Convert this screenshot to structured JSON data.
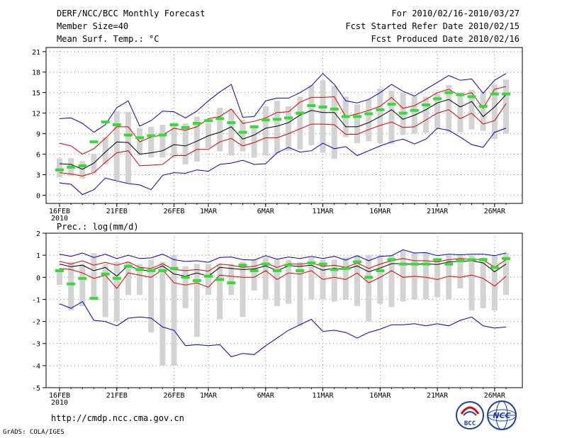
{
  "header": {
    "title": "DERF/NCC/BCC Monthly Forecast",
    "member": "Member Size=40",
    "variable1": "Mean Surf. Temp.: °C",
    "period": "For 2010/02/16-2010/03/27",
    "started": "Fcst Started Refer Date 2010/02/15",
    "produced": "Fcst Produced Date 2010/02/16"
  },
  "footer": {
    "url": "http://cmdp.ncc.cma.gov.cn",
    "credit": "GrADS: COLA/IGES",
    "logo_bcc": "BCC",
    "logo_ncc": "NCC"
  },
  "colors": {
    "envelope": "#0000cc",
    "spread": "#dd0000",
    "mean": "#000000",
    "box": "#d3d3d3",
    "marker": "#33dd33"
  },
  "chart_data": [
    {
      "type": "line",
      "title": "Mean Surf. Temp.: °C",
      "ylabel": "°C",
      "ylim": [
        -1.2,
        21.6
      ],
      "yticks": [
        0,
        3,
        6,
        9,
        12,
        15,
        18,
        21
      ],
      "x_tick_labels": [
        "16FEB",
        "21FEB",
        "26FEB",
        "1MAR",
        "6MAR",
        "11MAR",
        "16MAR",
        "21MAR",
        "26MAR"
      ],
      "x_tick_days": [
        0,
        5,
        10,
        13,
        18,
        23,
        28,
        33,
        38
      ],
      "x_year_label": "2010",
      "days": 40,
      "series": [
        {
          "name": "max",
          "values": [
            11.2,
            11.3,
            10.5,
            9.2,
            10.3,
            12.8,
            13.8,
            10.1,
            10.9,
            12.3,
            12.2,
            11.3,
            12.3,
            13.8,
            15.1,
            16.2,
            11.4,
            11.5,
            13.8,
            14.2,
            14.2,
            15.0,
            16.0,
            17.8,
            16.2,
            13.8,
            13.5,
            14.0,
            15.0,
            16.2,
            15.2,
            14.5,
            15.5,
            16.5,
            17.5,
            16.8,
            17.0,
            14.9,
            16.8,
            17.8
          ]
        },
        {
          "name": "upper",
          "values": [
            7.6,
            7.2,
            6.0,
            6.8,
            8.3,
            10.0,
            10.0,
            7.8,
            8.5,
            8.8,
            9.8,
            9.5,
            10.0,
            11.2,
            11.5,
            12.6,
            10.5,
            10.8,
            11.3,
            12.1,
            12.2,
            13.6,
            14.3,
            14.3,
            14.4,
            11.5,
            11.9,
            12.4,
            13.0,
            14.3,
            12.7,
            13.1,
            14.0,
            15.0,
            15.5,
            14.5,
            15.0,
            12.7,
            15.5,
            15.9
          ]
        },
        {
          "name": "mean",
          "values": [
            4.6,
            4.5,
            3.8,
            4.7,
            6.3,
            7.8,
            7.7,
            6.0,
            6.2,
            6.5,
            7.4,
            7.2,
            7.9,
            8.7,
            9.2,
            10.0,
            8.2,
            8.8,
            9.8,
            10.1,
            10.6,
            11.7,
            12.4,
            12.1,
            12.1,
            10.0,
            10.0,
            10.6,
            11.5,
            12.5,
            11.1,
            11.7,
            12.5,
            13.5,
            14.0,
            12.9,
            13.7,
            11.5,
            12.9,
            14.7
          ]
        },
        {
          "name": "lower",
          "values": [
            3.3,
            3.1,
            2.8,
            3.3,
            4.8,
            6.2,
            6.5,
            4.3,
            4.4,
            4.5,
            5.8,
            5.8,
            6.7,
            6.7,
            7.8,
            8.3,
            7.2,
            7.7,
            8.4,
            8.4,
            9.0,
            9.7,
            10.4,
            10.4,
            10.3,
            8.9,
            8.9,
            9.6,
            10.2,
            10.7,
            9.9,
            10.0,
            11.0,
            12.0,
            12.5,
            11.2,
            12.0,
            10.4,
            10.9,
            13.4
          ]
        },
        {
          "name": "min",
          "values": [
            1.8,
            1.6,
            0.1,
            0.8,
            2.5,
            2.1,
            1.7,
            1.5,
            0.8,
            2.9,
            3.3,
            3.2,
            3.7,
            3.5,
            4.5,
            4.7,
            5.1,
            4.5,
            4.6,
            6.2,
            7.0,
            6.3,
            6.5,
            7.6,
            6.8,
            7.1,
            5.8,
            6.5,
            7.2,
            7.8,
            8.2,
            7.5,
            8.2,
            9.8,
            9.5,
            8.5,
            7.4,
            7.0,
            9.2,
            9.8
          ]
        }
      ],
      "box_low": [
        2.6,
        2.8,
        2.4,
        3.2,
        4.5,
        2.2,
        1.8,
        5.8,
        5.5,
        5.5,
        5.6,
        4.5,
        4.9,
        6.9,
        6.4,
        5.8,
        6.4,
        5.5,
        5.8,
        6.1,
        6.5,
        6.7,
        7.3,
        6.2,
        5.3,
        8.5,
        7.6,
        7.9,
        7.6,
        7.5,
        8.8,
        9.0,
        9.1,
        9.7,
        9.2,
        9.2,
        9.6,
        9.4,
        8.2,
        9.0
      ],
      "box_high": [
        5.4,
        5.4,
        5.0,
        6.0,
        8.5,
        12.3,
        12.2,
        9.8,
        10.0,
        10.3,
        10.2,
        10.5,
        11.5,
        10.5,
        12.8,
        12.5,
        11.0,
        10.0,
        13.0,
        13.8,
        13.0,
        14.4,
        16.1,
        16.8,
        16.0,
        14.4,
        13.3,
        14.0,
        15.6,
        15.3,
        15.0,
        14.5,
        14.4,
        14.8,
        16.1,
        15.0,
        15.4,
        15.1,
        16.2,
        16.9
      ],
      "markers": [
        3.7,
        4.1,
        4.3,
        7.8,
        10.7,
        10.3,
        8.8,
        8.4,
        8.7,
        8.8,
        10.3,
        9.9,
        10.5,
        10.9,
        11.2,
        10.6,
        9.2,
        10.0,
        11.0,
        11.1,
        11.3,
        12.0,
        13.1,
        12.9,
        12.6,
        11.5,
        11.5,
        11.9,
        12.5,
        13.3,
        12.0,
        12.4,
        13.2,
        14.1,
        15.0,
        14.7,
        14.4,
        13.0,
        14.8,
        14.8
      ]
    },
    {
      "type": "line",
      "title": "Prec.: log(mm/d)",
      "ylabel": "log(mm/d)",
      "ylim": [
        -5,
        2
      ],
      "yticks": [
        -5,
        -4,
        -3,
        -2,
        -1,
        0,
        1,
        2
      ],
      "x_tick_labels": [
        "16FEB",
        "21FEB",
        "26FEB",
        "1MAR",
        "6MAR",
        "11MAR",
        "16MAR",
        "21MAR",
        "26MAR"
      ],
      "x_tick_days": [
        0,
        5,
        10,
        13,
        18,
        23,
        28,
        33,
        38
      ],
      "x_year_label": "2010",
      "days": 40,
      "series": [
        {
          "name": "max",
          "values": [
            1.05,
            0.95,
            1.1,
            0.9,
            1.05,
            0.85,
            1.0,
            0.85,
            0.88,
            1.05,
            0.8,
            0.72,
            0.75,
            0.68,
            0.9,
            0.92,
            0.8,
            0.78,
            0.98,
            0.82,
            0.92,
            0.85,
            0.95,
            0.85,
            0.95,
            0.78,
            0.98,
            0.75,
            0.95,
            0.98,
            1.25,
            1.1,
            1.12,
            0.98,
            1.05,
            1.02,
            1.05,
            1.05,
            0.98,
            1.1
          ]
        },
        {
          "name": "upper",
          "values": [
            0.72,
            0.6,
            0.75,
            0.55,
            0.68,
            0.55,
            0.7,
            0.45,
            0.4,
            0.62,
            0.35,
            0.3,
            0.35,
            0.28,
            0.6,
            0.55,
            0.45,
            0.5,
            0.65,
            0.45,
            0.62,
            0.6,
            0.65,
            0.5,
            0.55,
            0.45,
            0.65,
            0.4,
            0.6,
            0.75,
            0.85,
            0.75,
            0.75,
            0.7,
            0.8,
            0.85,
            0.82,
            0.8,
            0.45,
            0.8
          ]
        },
        {
          "name": "mean",
          "values": [
            0.6,
            0.48,
            0.55,
            0.3,
            0.45,
            0.05,
            0.55,
            0.32,
            0.3,
            0.52,
            0.15,
            0.05,
            0.2,
            0.05,
            0.45,
            0.4,
            0.35,
            0.38,
            0.52,
            0.3,
            0.52,
            0.5,
            0.55,
            0.32,
            0.42,
            0.35,
            0.52,
            0.25,
            0.42,
            0.62,
            0.62,
            0.58,
            0.62,
            0.58,
            0.7,
            0.72,
            0.75,
            0.65,
            0.25,
            0.6
          ]
        },
        {
          "name": "lower",
          "values": [
            0.4,
            0.35,
            0.2,
            -0.05,
            0.1,
            -0.5,
            0.2,
            0.1,
            0.0,
            0.35,
            -0.25,
            -0.35,
            -0.25,
            -0.45,
            0.1,
            0.05,
            0.0,
            0.0,
            0.3,
            -0.1,
            0.2,
            0.15,
            0.3,
            -0.1,
            0.0,
            -0.1,
            0.2,
            -0.25,
            0.0,
            0.3,
            0.0,
            0.05,
            0.0,
            -0.1,
            0.05,
            0.0,
            0.1,
            -0.05,
            -0.4,
            0.05
          ]
        },
        {
          "name": "min",
          "values": [
            -1.2,
            -1.4,
            -1.1,
            -1.95,
            -2.0,
            -2.2,
            -1.85,
            -1.8,
            -1.85,
            -2.25,
            -2.4,
            -3.1,
            -3.05,
            -3.1,
            -3.05,
            -3.6,
            -3.45,
            -3.5,
            -3.1,
            -2.75,
            -2.4,
            -2.15,
            -1.9,
            -2.45,
            -2.4,
            -2.5,
            -2.75,
            -2.5,
            -2.35,
            -2.15,
            -2.15,
            -2.1,
            -2.2,
            -2.1,
            -2.2,
            -1.95,
            -1.8,
            -2.2,
            -2.3,
            -2.25
          ]
        }
      ],
      "box_low": [
        -0.35,
        -1.5,
        -1.3,
        -0.9,
        -1.8,
        -2.0,
        -0.8,
        -0.8,
        -2.5,
        -4.0,
        -4.0,
        -1.4,
        -2.7,
        -0.8,
        -1.9,
        -0.8,
        -1.8,
        -0.6,
        -1.0,
        -1.3,
        -1.2,
        -2.2,
        -1.0,
        -1.0,
        -1.1,
        -1.0,
        -1.3,
        -2.0,
        -1.2,
        -1.35,
        -1.1,
        -1.0,
        -1.0,
        -0.9,
        -1.0,
        -0.5,
        -1.5,
        -1.4,
        -1.5,
        -0.8
      ],
      "box_high": [
        0.3,
        0.7,
        0.6,
        1.1,
        0.6,
        0.7,
        0.7,
        0.6,
        0.8,
        0.7,
        1.0,
        0.5,
        0.6,
        0.6,
        0.6,
        0.6,
        0.7,
        0.8,
        0.9,
        0.8,
        0.8,
        0.7,
        0.9,
        0.8,
        0.8,
        0.9,
        1.0,
        1.0,
        1.0,
        1.0,
        1.2,
        1.1,
        1.1,
        0.8,
        1.0,
        1.0,
        1.0,
        0.9,
        1.0,
        1.1
      ],
      "markers": [
        0.3,
        -0.3,
        -0.05,
        -0.95,
        0.15,
        -0.05,
        0.5,
        0.35,
        0.3,
        0.3,
        0.4,
        0.0,
        -0.15,
        0.05,
        -0.1,
        -0.25,
        0.55,
        0.3,
        0.6,
        0.3,
        0.55,
        0.3,
        0.65,
        0.6,
        0.35,
        0.4,
        0.7,
        0.0,
        0.3,
        0.8,
        0.6,
        0.6,
        0.6,
        0.8,
        0.6,
        0.75,
        0.8,
        0.8,
        0.45,
        0.85
      ]
    }
  ]
}
